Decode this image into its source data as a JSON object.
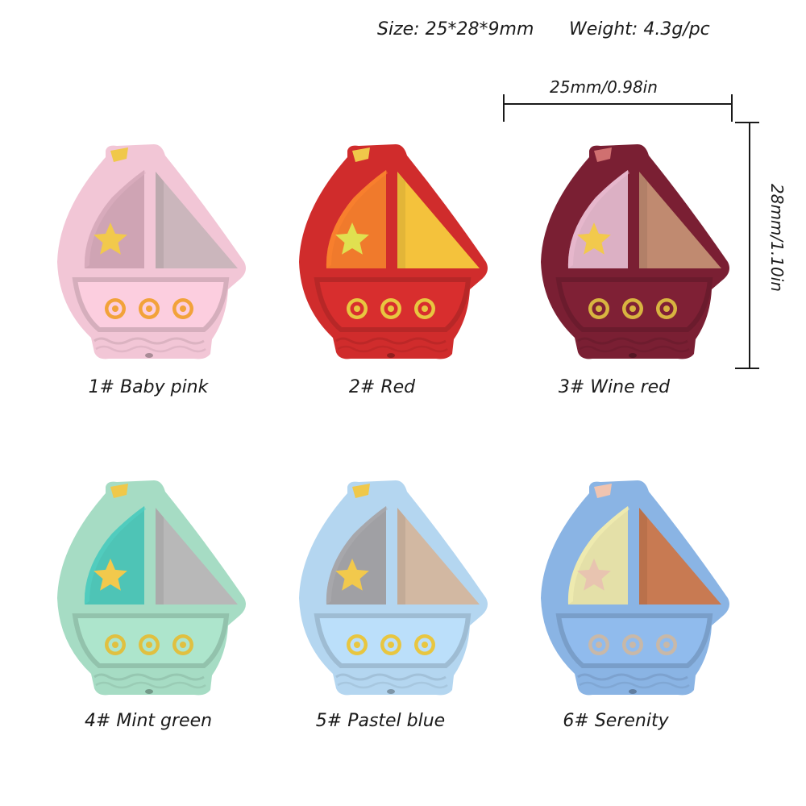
{
  "specs": {
    "size": "Size: 25*28*9mm",
    "weight": "Weight: 4.3g/pc"
  },
  "dimensions": {
    "width": "25mm/0.98in",
    "height": "28mm/1.10in"
  },
  "products": [
    {
      "label": "1# Baby pink",
      "colors": {
        "body": "#f2c6d6",
        "sail_left": "#cfa4b4",
        "sail_right": "#cbb6bc",
        "star": "#f2c94c",
        "flag": "#f0c84a",
        "portholes": "#f2a23a"
      }
    },
    {
      "label": "2# Red",
      "colors": {
        "body": "#d02c2c",
        "sail_left": "#f07a2c",
        "sail_right": "#f4c23c",
        "star": "#e0e050",
        "flag": "#f0c84a",
        "portholes": "#e8c640"
      }
    },
    {
      "label": "3# Wine red",
      "colors": {
        "body": "#7a1f33",
        "sail_left": "#dcb0c4",
        "sail_right": "#c08a70",
        "star": "#f2c94c",
        "flag": "#d07070",
        "portholes": "#d8b440"
      }
    },
    {
      "label": "4# Mint green",
      "colors": {
        "body": "#a6dcc4",
        "sail_left": "#4ec4b6",
        "sail_right": "#b8b8b8",
        "star": "#f2c94c",
        "flag": "#f0c84a",
        "portholes": "#e0c040"
      }
    },
    {
      "label": "5# Pastel blue",
      "colors": {
        "body": "#b4d6f0",
        "sail_left": "#a0a0a4",
        "sail_right": "#d2b8a2",
        "star": "#f2c94c",
        "flag": "#f0c84a",
        "portholes": "#e8c640"
      }
    },
    {
      "label": "6# Serenity",
      "colors": {
        "body": "#8ab4e4",
        "sail_left": "#e4e0a8",
        "sail_right": "#c87a52",
        "star": "#e8c4b0",
        "flag": "#f0c4b0",
        "portholes": "#c8b8a8"
      }
    }
  ]
}
